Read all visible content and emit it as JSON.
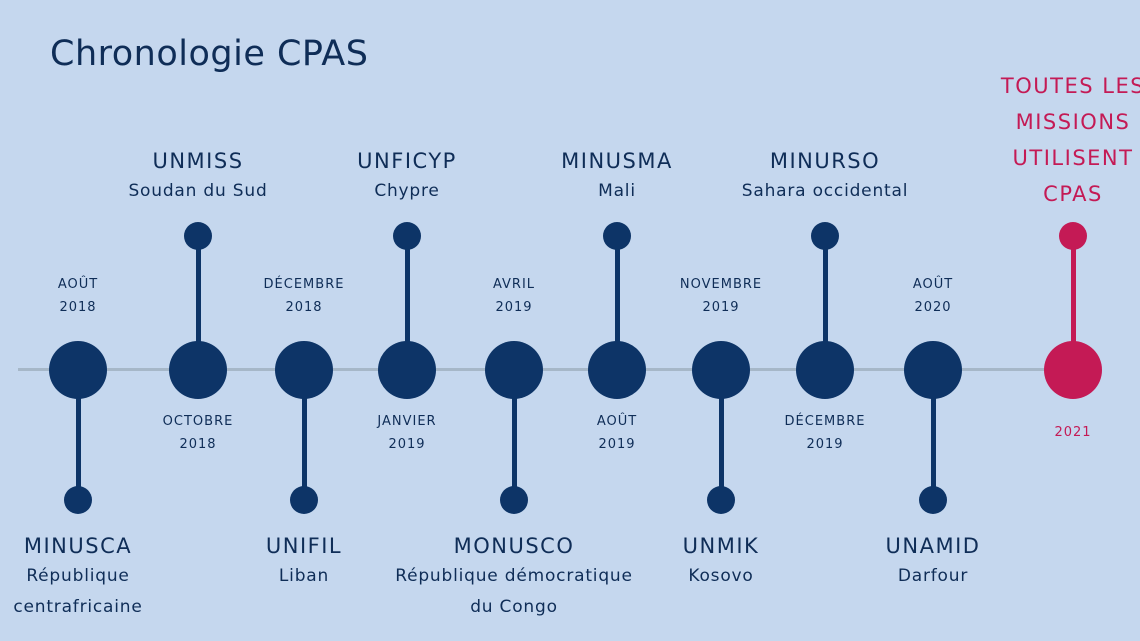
{
  "title": "Chronologie CPAS",
  "colors": {
    "background": "#c5d7ee",
    "primary": "#0d3467",
    "accent": "#c41a55",
    "axis": "#a6b7c8"
  },
  "events": [
    {
      "month": "AOÛT",
      "year": "2018",
      "mission": "MINUSCA",
      "place": [
        "République",
        "centrafricaine"
      ]
    },
    {
      "month": "OCTOBRE",
      "year": "2018",
      "mission": "UNMISS",
      "place": [
        "Soudan du Sud"
      ]
    },
    {
      "month": "DÉCEMBRE",
      "year": "2018",
      "mission": "UNIFIL",
      "place": [
        "Liban"
      ]
    },
    {
      "month": "JANVIER",
      "year": "2019",
      "mission": "UNFICYP",
      "place": [
        "Chypre"
      ]
    },
    {
      "month": "AVRIL",
      "year": "2019",
      "mission": "MONUSCO",
      "place": [
        "République démocratique",
        "du Congo"
      ]
    },
    {
      "month": "AOÛT",
      "year": "2019",
      "mission": "MINUSMA",
      "place": [
        "Mali"
      ]
    },
    {
      "month": "NOVEMBRE",
      "year": "2019",
      "mission": "UNMIK",
      "place": [
        "Kosovo"
      ]
    },
    {
      "month": "DÉCEMBRE",
      "year": "2019",
      "mission": "MINURSO",
      "place": [
        "Sahara occidental"
      ]
    },
    {
      "month": "AOÛT",
      "year": "2020",
      "mission": "UNAMID",
      "place": [
        "Darfour"
      ]
    }
  ],
  "final": {
    "year": "2021",
    "text": [
      "TOUTES LES",
      "MISSIONS",
      "UTILISENT",
      "CPAS"
    ]
  }
}
